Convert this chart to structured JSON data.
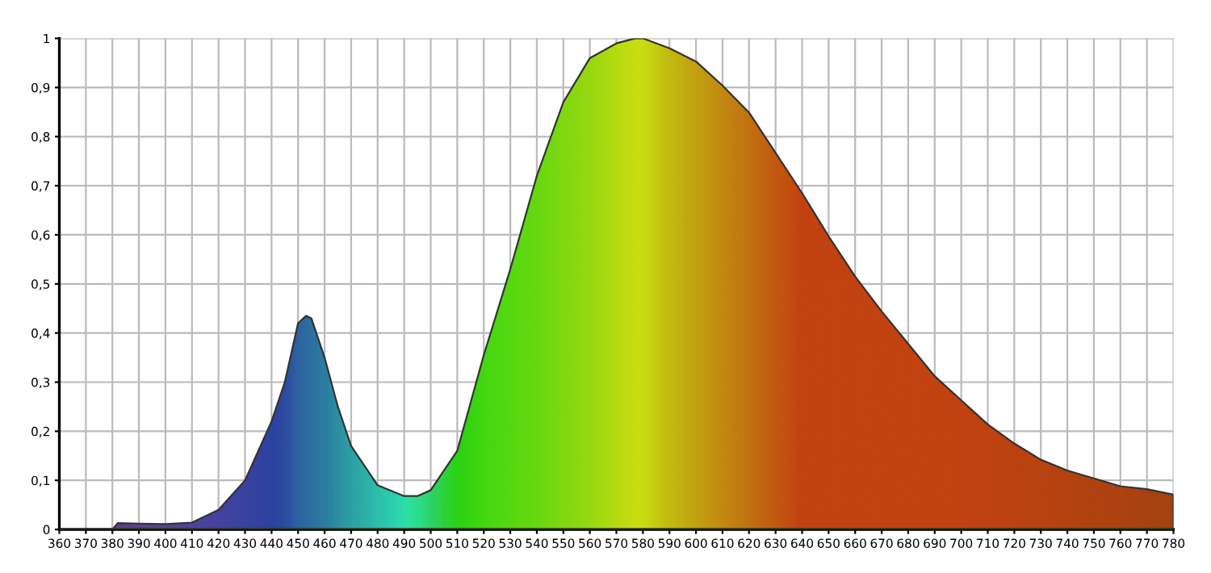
{
  "chart_data": {
    "type": "area",
    "x": [
      360,
      370,
      380,
      382,
      390,
      400,
      410,
      420,
      430,
      440,
      445,
      450,
      453,
      455,
      460,
      465,
      470,
      480,
      490,
      495,
      500,
      510,
      520,
      530,
      540,
      550,
      560,
      570,
      577,
      580,
      590,
      600,
      610,
      620,
      630,
      640,
      650,
      660,
      670,
      680,
      690,
      700,
      710,
      720,
      730,
      740,
      750,
      760,
      770,
      780
    ],
    "series": [
      {
        "values": [
          0,
          0,
          0,
          0.013,
          0.012,
          0.011,
          0.014,
          0.04,
          0.1,
          0.22,
          0.3,
          0.42,
          0.435,
          0.43,
          0.35,
          0.25,
          0.17,
          0.09,
          0.068,
          0.068,
          0.08,
          0.16,
          0.355,
          0.53,
          0.72,
          0.87,
          0.96,
          0.99,
          1.0,
          1.0,
          0.98,
          0.953,
          0.904,
          0.849,
          0.767,
          0.685,
          0.597,
          0.515,
          0.444,
          0.378,
          0.312,
          0.263,
          0.214,
          0.175,
          0.142,
          0.12,
          0.104,
          0.088,
          0.082,
          0.071
        ],
        "colors": [
          "#5010b0",
          "#5010b0",
          "#5010b0",
          "#5010b0",
          "#4a10c0",
          "#4a10c8",
          "#3e10cc",
          "#3010d0",
          "#2010d0",
          "#1010d0",
          "#1020d0",
          "#1040d0",
          "#1048d0",
          "#1050d0",
          "#1060d0",
          "#1078d4",
          "#1090d8",
          "#10b8e0",
          "#10e0e0",
          "#10e0b0",
          "#10d080",
          "#10d010",
          "#30d810",
          "#48d810",
          "#60d810",
          "#80d810",
          "#a0d810",
          "#c8dc10",
          "#e0e010",
          "#e0e010",
          "#d8b010",
          "#d89010",
          "#d87010",
          "#d85010",
          "#d83010",
          "#d81010",
          "#d81010",
          "#d81010",
          "#d81010",
          "#d81010",
          "#d81010",
          "#d81010",
          "#d41010",
          "#d01010",
          "#cc1010",
          "#c81010",
          "#c01010",
          "#bc1010",
          "#b61010",
          "#b01010"
        ]
      }
    ],
    "xlim": [
      360,
      780
    ],
    "xticks": [
      360,
      370,
      380,
      390,
      400,
      410,
      420,
      430,
      440,
      450,
      460,
      470,
      480,
      490,
      500,
      510,
      520,
      530,
      540,
      550,
      560,
      570,
      580,
      590,
      600,
      610,
      620,
      630,
      640,
      650,
      660,
      670,
      680,
      690,
      700,
      710,
      720,
      730,
      740,
      750,
      760,
      770,
      780
    ],
    "ylim": [
      0,
      1
    ],
    "yticks": [
      0,
      {
        "value": 0.1,
        "label": "0,1"
      },
      {
        "value": 0.2,
        "label": "0,2"
      },
      {
        "value": 0.3,
        "label": "0,3"
      },
      {
        "value": 0.4,
        "label": "0,4"
      },
      {
        "value": 0.5,
        "label": "0,5"
      },
      {
        "value": 0.6,
        "label": "0,6"
      },
      {
        "value": 0.7,
        "label": "0,7"
      },
      {
        "value": 0.8,
        "label": "0,8"
      },
      {
        "value": 0.9,
        "label": "0,9"
      },
      1
    ],
    "grid": true
  }
}
